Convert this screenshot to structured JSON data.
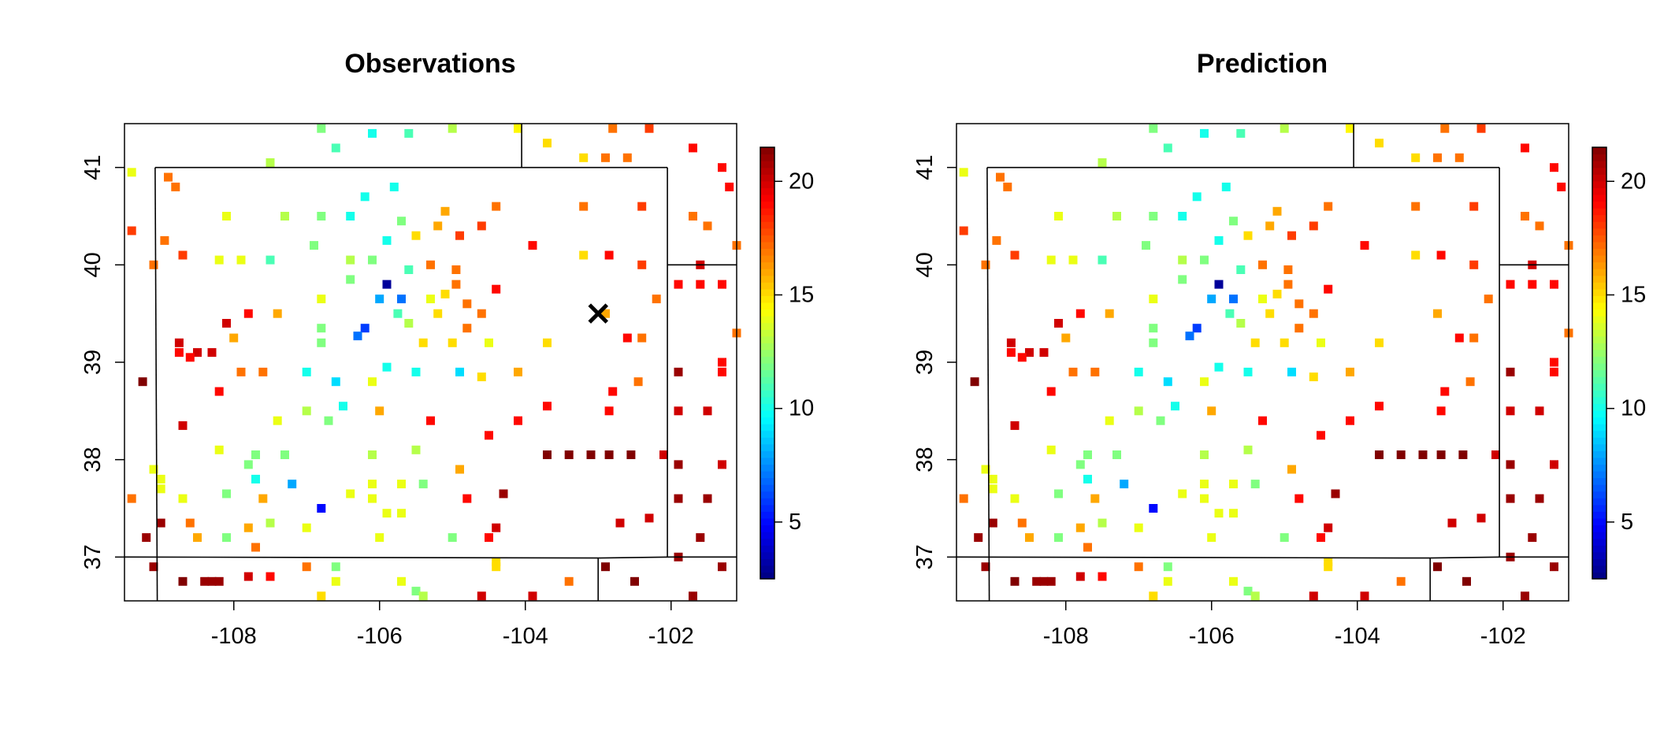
{
  "chart_data": [
    {
      "type": "heatmap",
      "title": "Observations",
      "xlabel": "",
      "ylabel": "",
      "xlim": [
        -109.5,
        -101.1
      ],
      "ylim": [
        36.55,
        41.45
      ],
      "xticks": [
        -108,
        -106,
        -104,
        -102
      ],
      "yticks": [
        37,
        38,
        39,
        40,
        41
      ],
      "colorbar": {
        "range": [
          2.5,
          21.5
        ],
        "ticks": [
          5,
          10,
          15,
          20
        ],
        "palette": "jet"
      },
      "grid": false,
      "marker": {
        "label": "×",
        "x": -103.0,
        "y": 39.5
      },
      "points": [
        {
          "x": -106.8,
          "y": 41.4,
          "v": 12
        },
        {
          "x": -106.1,
          "y": 41.35,
          "v": 10
        },
        {
          "x": -105.6,
          "y": 41.35,
          "v": 11
        },
        {
          "x": -105.0,
          "y": 41.4,
          "v": 13
        },
        {
          "x": -104.1,
          "y": 41.4,
          "v": 14.5
        },
        {
          "x": -103.7,
          "y": 41.25,
          "v": 15
        },
        {
          "x": -103.2,
          "y": 41.1,
          "v": 15
        },
        {
          "x": -102.9,
          "y": 41.1,
          "v": 17
        },
        {
          "x": -102.6,
          "y": 41.1,
          "v": 17
        },
        {
          "x": -102.8,
          "y": 41.4,
          "v": 17
        },
        {
          "x": -102.3,
          "y": 41.4,
          "v": 18
        },
        {
          "x": -101.7,
          "y": 41.2,
          "v": 19
        },
        {
          "x": -101.3,
          "y": 41.0,
          "v": 19
        },
        {
          "x": -101.2,
          "y": 40.8,
          "v": 19
        },
        {
          "x": -101.7,
          "y": 40.5,
          "v": 17
        },
        {
          "x": -101.5,
          "y": 40.4,
          "v": 17
        },
        {
          "x": -101.6,
          "y": 40.0,
          "v": 20
        },
        {
          "x": -101.3,
          "y": 39.8,
          "v": 19
        },
        {
          "x": -101.6,
          "y": 39.8,
          "v": 19
        },
        {
          "x": -101.9,
          "y": 39.8,
          "v": 19
        },
        {
          "x": -101.1,
          "y": 40.2,
          "v": 17
        },
        {
          "x": -101.1,
          "y": 39.3,
          "v": 17
        },
        {
          "x": -101.3,
          "y": 39.0,
          "v": 19
        },
        {
          "x": -101.3,
          "y": 38.9,
          "v": 19
        },
        {
          "x": -101.9,
          "y": 38.9,
          "v": 21
        },
        {
          "x": -101.9,
          "y": 38.5,
          "v": 20
        },
        {
          "x": -101.5,
          "y": 38.5,
          "v": 20
        },
        {
          "x": -101.9,
          "y": 37.95,
          "v": 21
        },
        {
          "x": -101.3,
          "y": 37.95,
          "v": 20
        },
        {
          "x": -101.9,
          "y": 37.6,
          "v": 21
        },
        {
          "x": -101.5,
          "y": 37.6,
          "v": 21
        },
        {
          "x": -101.6,
          "y": 37.2,
          "v": 21
        },
        {
          "x": -101.9,
          "y": 37.0,
          "v": 21
        },
        {
          "x": -101.3,
          "y": 36.9,
          "v": 21
        },
        {
          "x": -101.7,
          "y": 36.6,
          "v": 21
        },
        {
          "x": -109.4,
          "y": 40.95,
          "v": 14
        },
        {
          "x": -108.9,
          "y": 40.9,
          "v": 17
        },
        {
          "x": -108.8,
          "y": 40.8,
          "v": 17
        },
        {
          "x": -109.4,
          "y": 40.35,
          "v": 18
        },
        {
          "x": -108.95,
          "y": 40.25,
          "v": 17
        },
        {
          "x": -109.1,
          "y": 40.0,
          "v": 17
        },
        {
          "x": -108.7,
          "y": 40.1,
          "v": 18
        },
        {
          "x": -108.1,
          "y": 40.5,
          "v": 14
        },
        {
          "x": -108.2,
          "y": 40.05,
          "v": 14
        },
        {
          "x": -107.9,
          "y": 40.05,
          "v": 14
        },
        {
          "x": -107.5,
          "y": 40.05,
          "v": 11
        },
        {
          "x": -107.3,
          "y": 40.5,
          "v": 13
        },
        {
          "x": -106.9,
          "y": 40.2,
          "v": 12
        },
        {
          "x": -106.8,
          "y": 40.5,
          "v": 12
        },
        {
          "x": -106.4,
          "y": 40.5,
          "v": 10
        },
        {
          "x": -107.5,
          "y": 41.05,
          "v": 13
        },
        {
          "x": -106.6,
          "y": 41.2,
          "v": 11
        },
        {
          "x": -106.2,
          "y": 40.7,
          "v": 10
        },
        {
          "x": -105.8,
          "y": 40.8,
          "v": 10
        },
        {
          "x": -105.9,
          "y": 40.25,
          "v": 10
        },
        {
          "x": -105.7,
          "y": 40.45,
          "v": 12
        },
        {
          "x": -105.5,
          "y": 40.3,
          "v": 15
        },
        {
          "x": -105.2,
          "y": 40.4,
          "v": 16
        },
        {
          "x": -105.1,
          "y": 40.55,
          "v": 16
        },
        {
          "x": -104.6,
          "y": 40.4,
          "v": 18
        },
        {
          "x": -104.4,
          "y": 40.6,
          "v": 17
        },
        {
          "x": -103.9,
          "y": 40.2,
          "v": 19
        },
        {
          "x": -103.2,
          "y": 40.6,
          "v": 17
        },
        {
          "x": -102.4,
          "y": 40.6,
          "v": 18
        },
        {
          "x": -103.2,
          "y": 40.1,
          "v": 15
        },
        {
          "x": -102.85,
          "y": 40.1,
          "v": 19
        },
        {
          "x": -102.4,
          "y": 40.0,
          "v": 18
        },
        {
          "x": -102.2,
          "y": 39.65,
          "v": 17
        },
        {
          "x": -104.9,
          "y": 40.3,
          "v": 18
        },
        {
          "x": -104.95,
          "y": 39.95,
          "v": 17
        },
        {
          "x": -105.3,
          "y": 40.0,
          "v": 17
        },
        {
          "x": -105.6,
          "y": 39.95,
          "v": 11
        },
        {
          "x": -106.1,
          "y": 40.05,
          "v": 12
        },
        {
          "x": -106.4,
          "y": 40.05,
          "v": 13
        },
        {
          "x": -106.4,
          "y": 39.85,
          "v": 12
        },
        {
          "x": -105.9,
          "y": 39.8,
          "v": 3
        },
        {
          "x": -106.0,
          "y": 39.65,
          "v": 8
        },
        {
          "x": -105.7,
          "y": 39.65,
          "v": 7
        },
        {
          "x": -105.3,
          "y": 39.65,
          "v": 14
        },
        {
          "x": -105.1,
          "y": 39.7,
          "v": 15
        },
        {
          "x": -104.8,
          "y": 39.6,
          "v": 17
        },
        {
          "x": -104.4,
          "y": 39.75,
          "v": 19
        },
        {
          "x": -104.95,
          "y": 39.8,
          "v": 17
        },
        {
          "x": -104.6,
          "y": 39.5,
          "v": 17
        },
        {
          "x": -104.8,
          "y": 39.35,
          "v": 17
        },
        {
          "x": -105.2,
          "y": 39.5,
          "v": 15
        },
        {
          "x": -105.6,
          "y": 39.4,
          "v": 13
        },
        {
          "x": -105.75,
          "y": 39.5,
          "v": 11
        },
        {
          "x": -106.8,
          "y": 39.65,
          "v": 14
        },
        {
          "x": -106.2,
          "y": 39.35,
          "v": 6
        },
        {
          "x": -106.3,
          "y": 39.27,
          "v": 7
        },
        {
          "x": -106.8,
          "y": 39.35,
          "v": 12
        },
        {
          "x": -106.8,
          "y": 39.2,
          "v": 12
        },
        {
          "x": -107.4,
          "y": 39.5,
          "v": 16
        },
        {
          "x": -107.8,
          "y": 39.5,
          "v": 19
        },
        {
          "x": -108.1,
          "y": 39.4,
          "v": 20
        },
        {
          "x": -108.0,
          "y": 39.25,
          "v": 16
        },
        {
          "x": -108.75,
          "y": 39.2,
          "v": 20
        },
        {
          "x": -108.75,
          "y": 39.1,
          "v": 19
        },
        {
          "x": -108.5,
          "y": 39.1,
          "v": 20
        },
        {
          "x": -108.3,
          "y": 39.1,
          "v": 20
        },
        {
          "x": -108.6,
          "y": 39.05,
          "v": 19
        },
        {
          "x": -109.25,
          "y": 38.8,
          "v": 22
        },
        {
          "x": -107.9,
          "y": 38.9,
          "v": 17
        },
        {
          "x": -107.6,
          "y": 38.9,
          "v": 17
        },
        {
          "x": -107.0,
          "y": 38.9,
          "v": 10
        },
        {
          "x": -106.6,
          "y": 38.8,
          "v": 9
        },
        {
          "x": -106.1,
          "y": 38.8,
          "v": 14
        },
        {
          "x": -105.9,
          "y": 38.95,
          "v": 10
        },
        {
          "x": -105.5,
          "y": 38.9,
          "v": 10
        },
        {
          "x": -104.9,
          "y": 38.9,
          "v": 9
        },
        {
          "x": -104.6,
          "y": 38.85,
          "v": 15
        },
        {
          "x": -104.1,
          "y": 38.9,
          "v": 16
        },
        {
          "x": -103.7,
          "y": 39.2,
          "v": 15
        },
        {
          "x": -105.0,
          "y": 39.2,
          "v": 15
        },
        {
          "x": -105.4,
          "y": 39.2,
          "v": 15
        },
        {
          "x": -104.5,
          "y": 39.2,
          "v": 14
        },
        {
          "x": -102.9,
          "y": 39.5,
          "v": 16
        },
        {
          "x": -102.6,
          "y": 39.25,
          "v": 19
        },
        {
          "x": -102.4,
          "y": 39.25,
          "v": 17
        },
        {
          "x": -102.8,
          "y": 38.7,
          "v": 19
        },
        {
          "x": -102.45,
          "y": 38.8,
          "v": 17
        },
        {
          "x": -103.7,
          "y": 38.55,
          "v": 19
        },
        {
          "x": -104.1,
          "y": 38.4,
          "v": 19
        },
        {
          "x": -104.5,
          "y": 38.25,
          "v": 19
        },
        {
          "x": -105.3,
          "y": 38.4,
          "v": 19
        },
        {
          "x": -106.5,
          "y": 38.55,
          "v": 10
        },
        {
          "x": -106.0,
          "y": 38.5,
          "v": 16
        },
        {
          "x": -107.0,
          "y": 38.5,
          "v": 13
        },
        {
          "x": -106.7,
          "y": 38.4,
          "v": 12
        },
        {
          "x": -107.4,
          "y": 38.4,
          "v": 14
        },
        {
          "x": -108.2,
          "y": 38.7,
          "v": 19
        },
        {
          "x": -108.7,
          "y": 38.35,
          "v": 20
        },
        {
          "x": -102.85,
          "y": 38.5,
          "v": 19
        },
        {
          "x": -103.7,
          "y": 38.05,
          "v": 22
        },
        {
          "x": -103.4,
          "y": 38.05,
          "v": 22
        },
        {
          "x": -103.1,
          "y": 38.05,
          "v": 22
        },
        {
          "x": -102.85,
          "y": 38.05,
          "v": 22
        },
        {
          "x": -102.55,
          "y": 38.05,
          "v": 22
        },
        {
          "x": -102.1,
          "y": 38.05,
          "v": 20
        },
        {
          "x": -109.1,
          "y": 37.9,
          "v": 14
        },
        {
          "x": -109.0,
          "y": 37.8,
          "v": 14
        },
        {
          "x": -109.0,
          "y": 37.7,
          "v": 14
        },
        {
          "x": -109.4,
          "y": 37.6,
          "v": 17
        },
        {
          "x": -109.0,
          "y": 37.35,
          "v": 21
        },
        {
          "x": -109.2,
          "y": 37.2,
          "v": 21
        },
        {
          "x": -108.7,
          "y": 37.6,
          "v": 14
        },
        {
          "x": -108.2,
          "y": 38.1,
          "v": 14
        },
        {
          "x": -107.7,
          "y": 38.05,
          "v": 12
        },
        {
          "x": -107.8,
          "y": 37.95,
          "v": 12
        },
        {
          "x": -107.3,
          "y": 38.05,
          "v": 12
        },
        {
          "x": -107.7,
          "y": 37.8,
          "v": 10
        },
        {
          "x": -108.1,
          "y": 37.65,
          "v": 12
        },
        {
          "x": -107.6,
          "y": 37.6,
          "v": 16
        },
        {
          "x": -107.2,
          "y": 37.75,
          "v": 8
        },
        {
          "x": -106.8,
          "y": 37.5,
          "v": 5
        },
        {
          "x": -106.4,
          "y": 37.65,
          "v": 14
        },
        {
          "x": -106.1,
          "y": 37.75,
          "v": 14
        },
        {
          "x": -106.1,
          "y": 37.6,
          "v": 14
        },
        {
          "x": -105.9,
          "y": 37.45,
          "v": 14
        },
        {
          "x": -105.7,
          "y": 37.45,
          "v": 14
        },
        {
          "x": -105.7,
          "y": 37.75,
          "v": 14
        },
        {
          "x": -105.4,
          "y": 37.75,
          "v": 12
        },
        {
          "x": -104.8,
          "y": 37.6,
          "v": 19
        },
        {
          "x": -104.3,
          "y": 37.65,
          "v": 21
        },
        {
          "x": -104.9,
          "y": 37.9,
          "v": 16
        },
        {
          "x": -105.5,
          "y": 38.1,
          "v": 13
        },
        {
          "x": -106.1,
          "y": 38.05,
          "v": 13
        },
        {
          "x": -108.6,
          "y": 37.35,
          "v": 17
        },
        {
          "x": -108.5,
          "y": 37.2,
          "v": 16
        },
        {
          "x": -108.1,
          "y": 37.2,
          "v": 12
        },
        {
          "x": -107.8,
          "y": 37.3,
          "v": 16
        },
        {
          "x": -107.7,
          "y": 37.1,
          "v": 17
        },
        {
          "x": -107.5,
          "y": 37.35,
          "v": 13
        },
        {
          "x": -107.0,
          "y": 37.3,
          "v": 14
        },
        {
          "x": -106.0,
          "y": 37.2,
          "v": 14
        },
        {
          "x": -105.0,
          "y": 37.2,
          "v": 12
        },
        {
          "x": -104.5,
          "y": 37.2,
          "v": 19
        },
        {
          "x": -104.4,
          "y": 37.3,
          "v": 20
        },
        {
          "x": -102.7,
          "y": 37.35,
          "v": 20
        },
        {
          "x": -102.3,
          "y": 37.4,
          "v": 20
        },
        {
          "x": -109.1,
          "y": 36.9,
          "v": 21
        },
        {
          "x": -108.7,
          "y": 36.75,
          "v": 22
        },
        {
          "x": -108.4,
          "y": 36.75,
          "v": 21
        },
        {
          "x": -108.3,
          "y": 36.75,
          "v": 21
        },
        {
          "x": -108.2,
          "y": 36.75,
          "v": 21
        },
        {
          "x": -107.8,
          "y": 36.8,
          "v": 20
        },
        {
          "x": -107.5,
          "y": 36.8,
          "v": 19
        },
        {
          "x": -107.0,
          "y": 36.9,
          "v": 17
        },
        {
          "x": -106.6,
          "y": 36.75,
          "v": 14
        },
        {
          "x": -106.6,
          "y": 36.9,
          "v": 12
        },
        {
          "x": -106.8,
          "y": 36.6,
          "v": 15
        },
        {
          "x": -105.7,
          "y": 36.75,
          "v": 14
        },
        {
          "x": -105.5,
          "y": 36.65,
          "v": 12
        },
        {
          "x": -105.4,
          "y": 36.6,
          "v": 13
        },
        {
          "x": -104.6,
          "y": 36.6,
          "v": 20
        },
        {
          "x": -104.4,
          "y": 36.9,
          "v": 15
        },
        {
          "x": -104.4,
          "y": 36.95,
          "v": 15
        },
        {
          "x": -103.9,
          "y": 36.6,
          "v": 20
        },
        {
          "x": -103.4,
          "y": 36.75,
          "v": 17
        },
        {
          "x": -102.9,
          "y": 36.9,
          "v": 22
        },
        {
          "x": -102.5,
          "y": 36.75,
          "v": 22
        }
      ]
    },
    {
      "type": "heatmap",
      "title": "Prediction",
      "xlabel": "",
      "ylabel": "",
      "xlim": [
        -109.5,
        -101.1
      ],
      "ylim": [
        36.55,
        41.45
      ],
      "xticks": [
        -108,
        -106,
        -104,
        -102
      ],
      "yticks": [
        37,
        38,
        39,
        40,
        41
      ],
      "colorbar": {
        "range": [
          2.5,
          21.5
        ],
        "ticks": [
          5,
          10,
          15,
          20
        ],
        "palette": "jet"
      },
      "grid": false,
      "points_same_as": "Observations"
    }
  ],
  "panels": [
    {
      "title": "Observations",
      "xticks": [
        "-108",
        "-106",
        "-104",
        "-102"
      ],
      "yticks": [
        "37",
        "38",
        "39",
        "40",
        "41"
      ],
      "cbticks": [
        "5",
        "10",
        "15",
        "20"
      ]
    },
    {
      "title": "Prediction",
      "xticks": [
        "-108",
        "-106",
        "-104",
        "-102"
      ],
      "yticks": [
        "37",
        "38",
        "39",
        "40",
        "41"
      ],
      "cbticks": [
        "5",
        "10",
        "15",
        "20"
      ]
    }
  ],
  "colors": {
    "axis": "#000000",
    "background": "#ffffff"
  }
}
